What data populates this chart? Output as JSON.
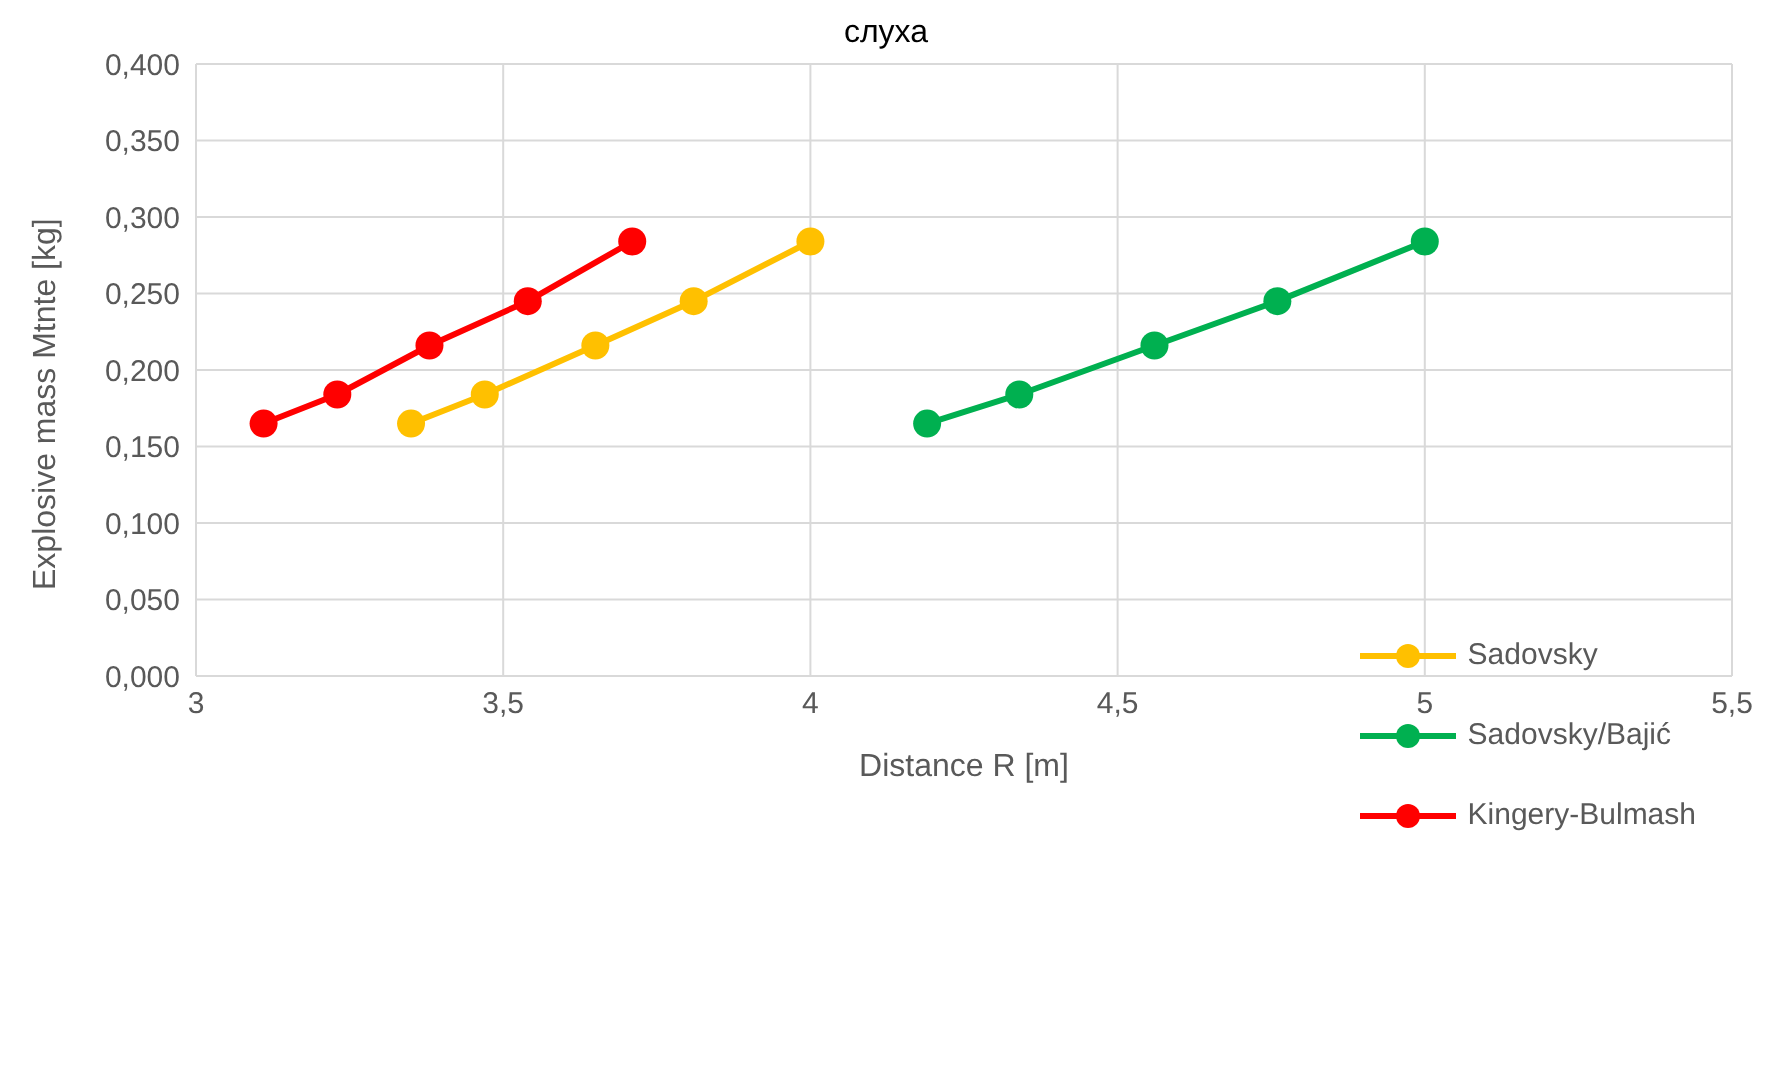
{
  "chart_data": {
    "type": "line",
    "xlabel": "Distance R [m]",
    "ylabel": "Explosive mass Mtnte [kg]",
    "annotations": [
      "слуха"
    ],
    "xlim": [
      3,
      5.5
    ],
    "xticks": [
      {
        "value": 3,
        "label": "3"
      },
      {
        "value": 3.5,
        "label": "3,5"
      },
      {
        "value": 4,
        "label": "4"
      },
      {
        "value": 4.5,
        "label": "4,5"
      },
      {
        "value": 5,
        "label": "5"
      },
      {
        "value": 5.5,
        "label": "5,5"
      }
    ],
    "ylim": [
      0,
      0.4
    ],
    "yticks": [
      {
        "value": 0,
        "label": "0,000"
      },
      {
        "value": 0.05,
        "label": "0,050"
      },
      {
        "value": 0.1,
        "label": "0,100"
      },
      {
        "value": 0.15,
        "label": "0,150"
      },
      {
        "value": 0.2,
        "label": "0,200"
      },
      {
        "value": 0.25,
        "label": "0,250"
      },
      {
        "value": 0.3,
        "label": "0,300"
      },
      {
        "value": 0.35,
        "label": "0,350"
      },
      {
        "value": 0.4,
        "label": "0,400"
      }
    ],
    "grid": true,
    "legend": "bottom right",
    "marker": "circle",
    "line_style": "solid",
    "series": [
      {
        "name": "Sadovsky",
        "color": "#ffc000",
        "x": [
          3.35,
          3.47,
          3.65,
          3.81,
          4.0
        ],
        "values": [
          0.165,
          0.184,
          0.216,
          0.245,
          0.284
        ]
      },
      {
        "name": "Sadovsky/Bajić",
        "color": "#00b050",
        "x": [
          4.19,
          4.34,
          4.56,
          4.76,
          5.0
        ],
        "values": [
          0.165,
          0.184,
          0.216,
          0.245,
          0.284
        ]
      },
      {
        "name": "Kingery-Bulmash",
        "color": "#ff0000",
        "x": [
          3.11,
          3.23,
          3.38,
          3.54,
          3.71
        ],
        "values": [
          0.165,
          0.184,
          0.216,
          0.245,
          0.284
        ]
      }
    ]
  }
}
